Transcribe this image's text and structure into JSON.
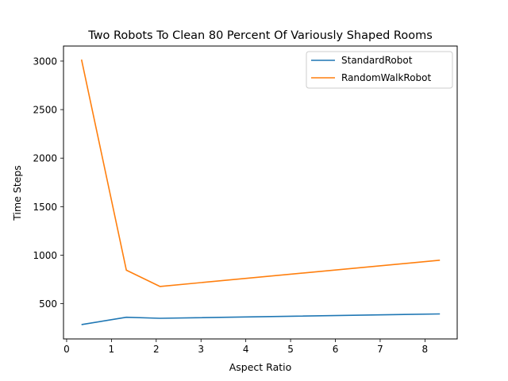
{
  "chart_data": {
    "type": "line",
    "title": "Two Robots To Clean 80 Percent Of Variously Shaped Rooms",
    "xlabel": "Aspect Ratio",
    "ylabel": "Time Steps",
    "xlim": [
      -0.07,
      8.72
    ],
    "ylim": [
      137,
      3155
    ],
    "xticks": [
      0,
      1,
      2,
      3,
      4,
      5,
      6,
      7,
      8
    ],
    "yticks": [
      500,
      1000,
      1500,
      2000,
      2500,
      3000
    ],
    "x": [
      0.333,
      1.333,
      2.083,
      8.333
    ],
    "series": [
      {
        "name": "StandardRobot",
        "color": "#1f77b4",
        "values": [
          285,
          360,
          350,
          395
        ]
      },
      {
        "name": "RandomWalkRobot",
        "color": "#ff7f0e",
        "values": [
          3015,
          845,
          678,
          948
        ]
      }
    ],
    "legend_position": "top-right",
    "grid": false
  }
}
